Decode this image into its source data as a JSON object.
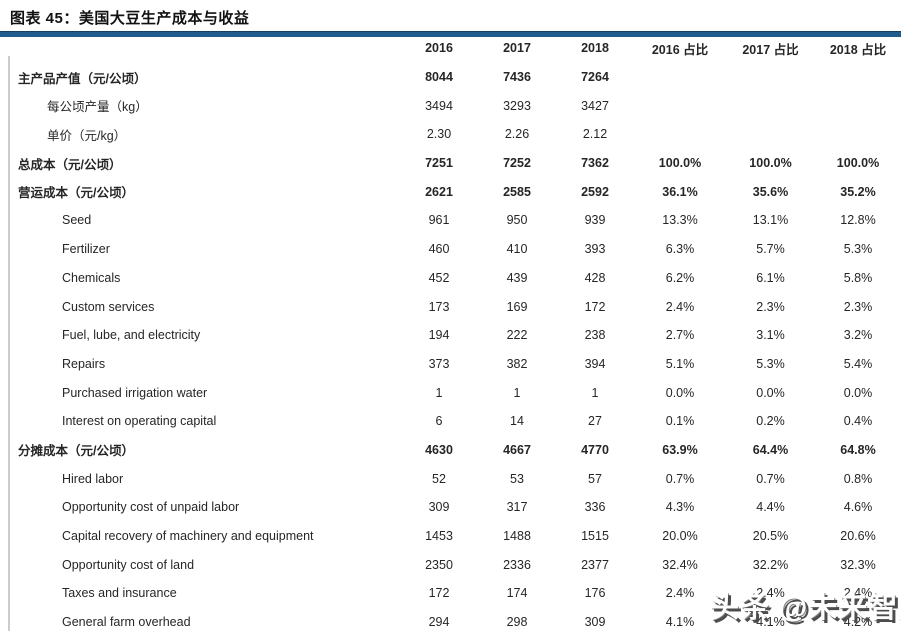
{
  "title": "图表 45：美国大豆生产成本与收益",
  "watermark": "头条 @未来智库",
  "colors": {
    "accent_rule_blue": "#1F5C8D",
    "left_border_gray": "#cccccc",
    "text": "#262626",
    "watermark_shadow": "#4d4d4d"
  },
  "table": {
    "columns": [
      "",
      "2016",
      "2017",
      "2018",
      "2016 占比",
      "2017 占比",
      "2018 占比"
    ],
    "rows": [
      {
        "label": "主产品产值（元/公顷）",
        "indent": 0,
        "bold": true,
        "values": [
          "8044",
          "7436",
          "7264",
          "",
          "",
          ""
        ]
      },
      {
        "label": "每公顷产量（kg）",
        "indent": 1,
        "bold": false,
        "values": [
          "3494",
          "3293",
          "3427",
          "",
          "",
          ""
        ]
      },
      {
        "label": "单价（元/kg）",
        "indent": 1,
        "bold": false,
        "values": [
          "2.30",
          "2.26",
          "2.12",
          "",
          "",
          ""
        ]
      },
      {
        "label": "总成本（元/公顷）",
        "indent": 0,
        "bold": true,
        "values": [
          "7251",
          "7252",
          "7362",
          "100.0%",
          "100.0%",
          "100.0%"
        ]
      },
      {
        "label": "营运成本（元/公顷）",
        "indent": 0,
        "bold": true,
        "values": [
          "2621",
          "2585",
          "2592",
          "36.1%",
          "35.6%",
          "35.2%"
        ]
      },
      {
        "label": "Seed",
        "indent": 2,
        "bold": false,
        "values": [
          "961",
          "950",
          "939",
          "13.3%",
          "13.1%",
          "12.8%"
        ]
      },
      {
        "label": "Fertilizer",
        "indent": 2,
        "bold": false,
        "values": [
          "460",
          "410",
          "393",
          "6.3%",
          "5.7%",
          "5.3%"
        ]
      },
      {
        "label": "Chemicals",
        "indent": 2,
        "bold": false,
        "values": [
          "452",
          "439",
          "428",
          "6.2%",
          "6.1%",
          "5.8%"
        ]
      },
      {
        "label": "Custom services",
        "indent": 2,
        "bold": false,
        "values": [
          "173",
          "169",
          "172",
          "2.4%",
          "2.3%",
          "2.3%"
        ]
      },
      {
        "label": "Fuel, lube, and electricity",
        "indent": 2,
        "bold": false,
        "values": [
          "194",
          "222",
          "238",
          "2.7%",
          "3.1%",
          "3.2%"
        ]
      },
      {
        "label": "Repairs",
        "indent": 2,
        "bold": false,
        "values": [
          "373",
          "382",
          "394",
          "5.1%",
          "5.3%",
          "5.4%"
        ]
      },
      {
        "label": "Purchased irrigation water",
        "indent": 2,
        "bold": false,
        "values": [
          "1",
          "1",
          "1",
          "0.0%",
          "0.0%",
          "0.0%"
        ]
      },
      {
        "label": "Interest on operating capital",
        "indent": 2,
        "bold": false,
        "values": [
          "6",
          "14",
          "27",
          "0.1%",
          "0.2%",
          "0.4%"
        ]
      },
      {
        "label": "分摊成本（元/公顷）",
        "indent": 0,
        "bold": true,
        "values": [
          "4630",
          "4667",
          "4770",
          "63.9%",
          "64.4%",
          "64.8%"
        ]
      },
      {
        "label": "Hired labor",
        "indent": 2,
        "bold": false,
        "values": [
          "52",
          "53",
          "57",
          "0.7%",
          "0.7%",
          "0.8%"
        ]
      },
      {
        "label": "Opportunity cost of unpaid labor",
        "indent": 2,
        "bold": false,
        "values": [
          "309",
          "317",
          "336",
          "4.3%",
          "4.4%",
          "4.6%"
        ]
      },
      {
        "label": "Capital recovery of machinery and equipment",
        "indent": 2,
        "bold": false,
        "values": [
          "1453",
          "1488",
          "1515",
          "20.0%",
          "20.5%",
          "20.6%"
        ]
      },
      {
        "label": "Opportunity cost of land",
        "indent": 2,
        "bold": false,
        "values": [
          "2350",
          "2336",
          "2377",
          "32.4%",
          "32.2%",
          "32.3%"
        ]
      },
      {
        "label": "Taxes and insurance",
        "indent": 2,
        "bold": false,
        "values": [
          "172",
          "174",
          "176",
          "2.4%",
          "2.4%",
          "2.4%"
        ]
      },
      {
        "label": "General farm overhead",
        "indent": 2,
        "bold": false,
        "values": [
          "294",
          "298",
          "309",
          "4.1%",
          "4.1%",
          "4.2%"
        ]
      }
    ]
  }
}
